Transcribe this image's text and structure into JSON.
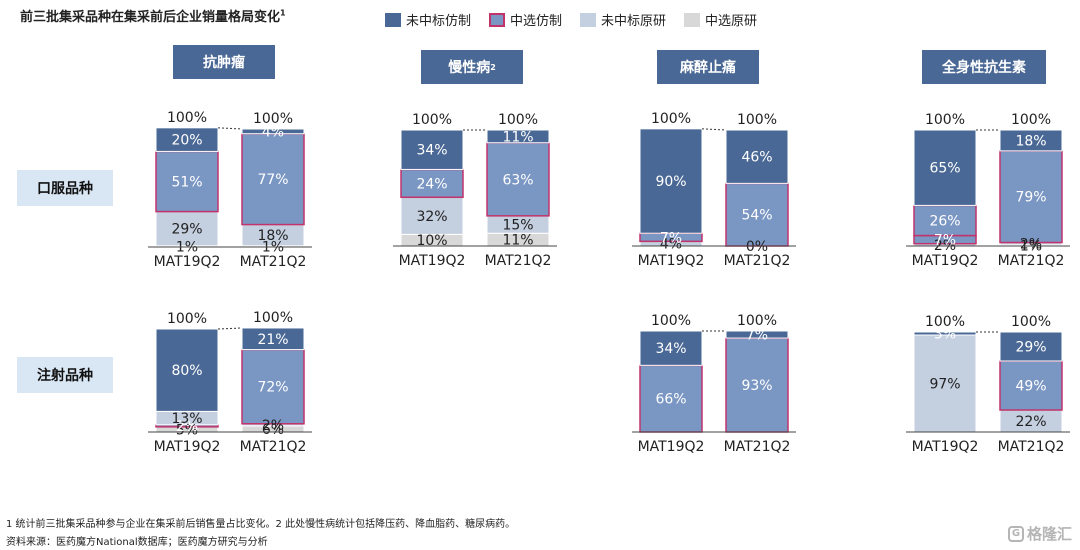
{
  "title": "前三批集采品种在集采前后企业销量格局变化",
  "title_sup": "1",
  "legend": [
    {
      "label": "未中标仿制",
      "color": "#4a6895",
      "border": "#4a6895"
    },
    {
      "label": "中选仿制",
      "color": "#7a96c3",
      "border": "#c2336b"
    },
    {
      "label": "未中标原研",
      "color": "#c4cfe0",
      "border": "#c4cfe0"
    },
    {
      "label": "中选原研",
      "color": "#d8d8d8",
      "border": "#d8d8d8"
    }
  ],
  "categories": [
    {
      "label": "抗肿瘤",
      "sup": ""
    },
    {
      "label": "慢性病",
      "sup": "2"
    },
    {
      "label": "麻醉止痛",
      "sup": ""
    },
    {
      "label": "全身性抗生素",
      "sup": ""
    }
  ],
  "rows": [
    {
      "label": "口服品种"
    },
    {
      "label": "注射品种"
    }
  ],
  "colors": {
    "unselected_generic": "#4a6895",
    "selected_generic": "#7a96c3",
    "unselected_original": "#c4cfe0",
    "selected_original": "#d8d8d8",
    "selected_border": "#c2336b",
    "header_bg": "#4a6895"
  },
  "chart_data": [
    {
      "type": "bar",
      "stacked": true,
      "panel": "抗肿瘤 口服品种",
      "categories": [
        "MAT19Q2",
        "MAT21Q2"
      ],
      "top_labels": [
        "100%",
        "100%"
      ],
      "series": [
        {
          "name": "中选原研",
          "values": [
            1,
            1
          ],
          "labels": [
            "1%",
            "1%"
          ]
        },
        {
          "name": "未中标原研",
          "values": [
            29,
            18
          ],
          "labels": [
            "29%",
            "18%"
          ]
        },
        {
          "name": "中选仿制",
          "values": [
            51,
            77
          ],
          "labels": [
            "51%",
            "77%"
          ]
        },
        {
          "name": "未中标仿制",
          "values": [
            20,
            4
          ],
          "labels": [
            "20%",
            "4%"
          ]
        }
      ]
    },
    {
      "type": "bar",
      "stacked": true,
      "panel": "慢性病 口服品种",
      "categories": [
        "MAT19Q2",
        "MAT21Q2"
      ],
      "top_labels": [
        "100%",
        "100%"
      ],
      "series": [
        {
          "name": "中选原研",
          "values": [
            10,
            11
          ],
          "labels": [
            "10%",
            "11%"
          ]
        },
        {
          "name": "未中标原研",
          "values": [
            32,
            15
          ],
          "labels": [
            "32%",
            "15%"
          ]
        },
        {
          "name": "中选仿制",
          "values": [
            24,
            63
          ],
          "labels": [
            "24%",
            "63%"
          ]
        },
        {
          "name": "未中标仿制",
          "values": [
            34,
            11
          ],
          "labels": [
            "34%",
            "11%"
          ]
        }
      ]
    },
    {
      "type": "bar",
      "stacked": true,
      "panel": "麻醉止痛 口服品种",
      "categories": [
        "MAT19Q2",
        "MAT21Q2"
      ],
      "top_labels": [
        "100%",
        "100%"
      ],
      "series": [
        {
          "name": "中选原研",
          "values": [
            0,
            0
          ],
          "labels": [
            "",
            ""
          ]
        },
        {
          "name": "未中标原研",
          "values": [
            4,
            0
          ],
          "labels": [
            "4%",
            "0%"
          ]
        },
        {
          "name": "中选仿制",
          "values": [
            7,
            54
          ],
          "labels": [
            "7%",
            "54%"
          ]
        },
        {
          "name": "未中标仿制",
          "values": [
            90,
            46
          ],
          "labels": [
            "90%",
            "46%"
          ]
        }
      ]
    },
    {
      "type": "bar",
      "stacked": true,
      "panel": "全身性抗生素 口服品种",
      "categories": [
        "MAT19Q2",
        "MAT21Q2"
      ],
      "top_labels": [
        "100%",
        "100%"
      ],
      "series": [
        {
          "name": "中选原研",
          "values": [
            0,
            1
          ],
          "labels": [
            "",
            "1%"
          ]
        },
        {
          "name": "未中标原研",
          "values": [
            2,
            2
          ],
          "labels": [
            "2%",
            "2%"
          ]
        },
        {
          "name": "中选仿制",
          "values": [
            7,
            79
          ],
          "labels": [
            "7%",
            "79%"
          ]
        },
        {
          "name": "中选仿制",
          "values": [
            26,
            0
          ],
          "labels": [
            "26%",
            ""
          ]
        },
        {
          "name": "未中标仿制",
          "values": [
            65,
            18
          ],
          "labels": [
            "65%",
            "18%"
          ]
        }
      ]
    },
    {
      "type": "bar",
      "stacked": true,
      "panel": "抗肿瘤 注射品种",
      "categories": [
        "MAT19Q2",
        "MAT21Q2"
      ],
      "top_labels": [
        "100%",
        "100%"
      ],
      "series": [
        {
          "name": "中选原研",
          "values": [
            5,
            6
          ],
          "labels": [
            "5%",
            "6%"
          ]
        },
        {
          "name": "未中标原研",
          "values": [
            0,
            2
          ],
          "labels": [
            "",
            "2%"
          ]
        },
        {
          "name": "中选仿制",
          "values": [
            2,
            72
          ],
          "labels": [
            "2%",
            "72%"
          ]
        },
        {
          "name": "未中标原研",
          "values": [
            13,
            0
          ],
          "labels": [
            "13%",
            ""
          ]
        },
        {
          "name": "未中标仿制",
          "values": [
            80,
            21
          ],
          "labels": [
            "80%",
            "21%"
          ]
        }
      ]
    },
    {
      "type": "bar",
      "stacked": true,
      "panel": "麻醉止痛 注射品种",
      "categories": [
        "MAT19Q2",
        "MAT21Q2"
      ],
      "top_labels": [
        "100%",
        "100%"
      ],
      "series": [
        {
          "name": "中选仿制",
          "values": [
            66,
            93
          ],
          "labels": [
            "66%",
            "93%"
          ]
        },
        {
          "name": "未中标仿制",
          "values": [
            34,
            7
          ],
          "labels": [
            "34%",
            "7%"
          ]
        }
      ]
    },
    {
      "type": "bar",
      "stacked": true,
      "panel": "全身性抗生素 注射品种",
      "categories": [
        "MAT19Q2",
        "MAT21Q2"
      ],
      "top_labels": [
        "100%",
        "100%"
      ],
      "series": [
        {
          "name": "未中标原研",
          "values": [
            97,
            22
          ],
          "labels": [
            "97%",
            "22%"
          ]
        },
        {
          "name": "中选仿制",
          "values": [
            0,
            49
          ],
          "labels": [
            "",
            "49%"
          ]
        },
        {
          "name": "未中标仿制",
          "values": [
            3,
            29
          ],
          "labels": [
            "3%",
            "29%"
          ]
        }
      ]
    }
  ],
  "footer": {
    "note": "1 统计前三批集采品种参与企业在集采前后销售量占比变化。2 此处慢性病统计包括降压药、降血脂药、糖尿病药。",
    "source": "资料来源：医药魔方National数据库；医药魔方研究与分析"
  },
  "watermark": {
    "icon": "G",
    "text": "格隆汇"
  }
}
